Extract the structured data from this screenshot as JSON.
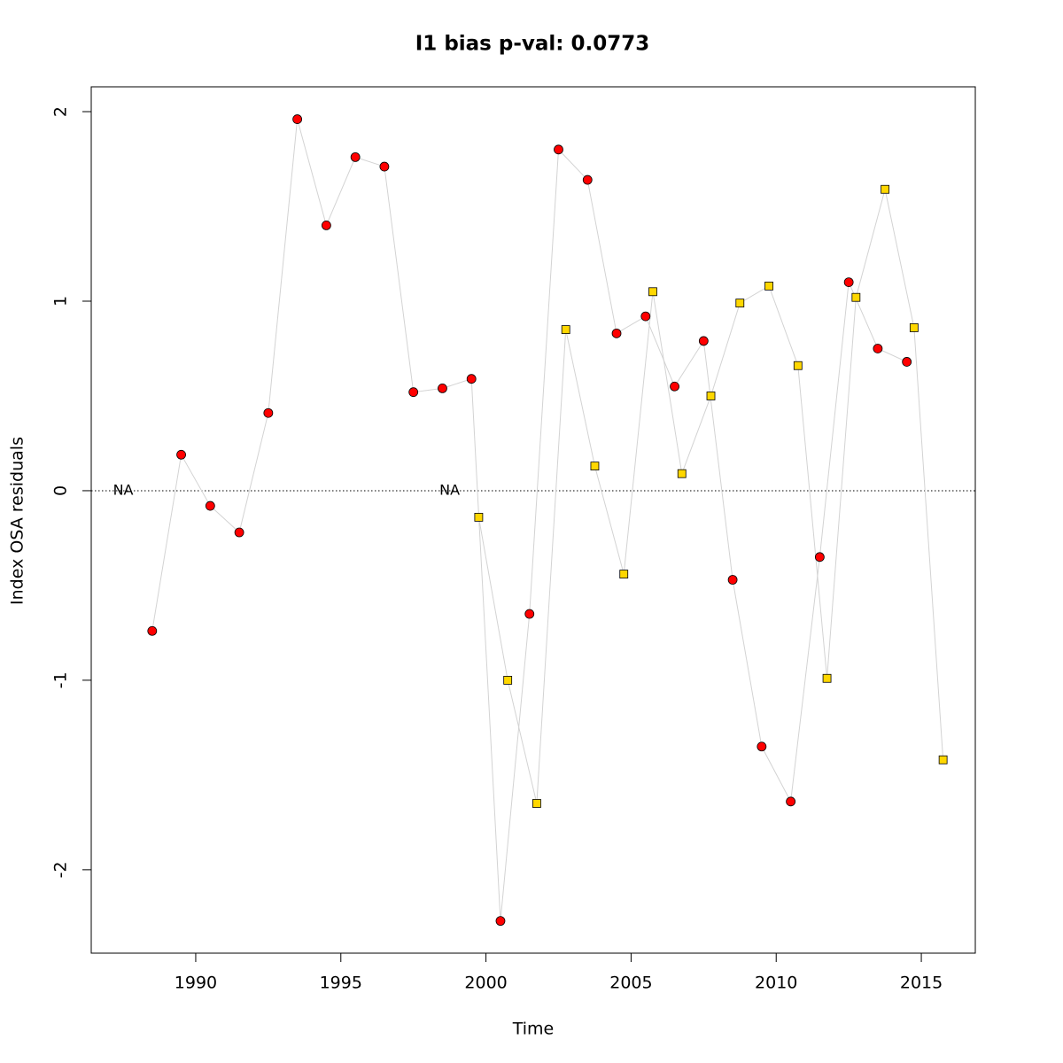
{
  "chart_data": {
    "type": "scatter",
    "title": "I1 bias p-val: 0.0773",
    "title_color": "#228b22",
    "xlabel": "Time",
    "ylabel": "Index OSA residuals",
    "xlim": [
      1986.4,
      2016.86
    ],
    "ylim": [
      -2.44,
      2.131
    ],
    "xticks": [
      1990,
      1995,
      2000,
      2005,
      2010,
      2015
    ],
    "yticks": [
      -2,
      -1,
      0,
      1,
      2
    ],
    "reference_line": 0,
    "na_label": "NA",
    "line_color": "#d3d3d3",
    "series": [
      {
        "marker": "circle",
        "color": "#ff0000",
        "x": [
          1987.5,
          1988.5,
          1989.5,
          1990.5,
          1991.5,
          1992.5,
          1993.5,
          1994.5,
          1995.5,
          1996.5,
          1997.5,
          1998.5,
          1999.5,
          2000.5,
          2001.5,
          2002.5,
          2003.5,
          2004.5,
          2005.5,
          2006.5,
          2007.5,
          2008.5,
          2009.5,
          2010.5,
          2011.5,
          2012.5,
          2013.5,
          2014.5
        ],
        "values": [
          null,
          -0.74,
          0.19,
          -0.08,
          -0.22,
          0.41,
          1.96,
          1.4,
          1.76,
          1.71,
          0.52,
          0.54,
          0.59,
          -2.27,
          -0.65,
          1.8,
          1.64,
          0.83,
          0.92,
          0.55,
          0.79,
          -0.47,
          -1.35,
          -1.64,
          -0.35,
          1.1,
          0.75,
          0.68
        ]
      },
      {
        "marker": "square",
        "color": "#ffd700",
        "x": [
          1998.75,
          1999.75,
          2000.75,
          2001.75,
          2002.75,
          2003.75,
          2004.75,
          2005.75,
          2006.75,
          2007.75,
          2008.75,
          2009.75,
          2010.75,
          2011.75,
          2012.75,
          2013.75,
          2014.75,
          2015.75
        ],
        "values": [
          null,
          -0.14,
          -1.0,
          -1.65,
          0.85,
          0.13,
          -0.44,
          1.05,
          0.09,
          0.5,
          0.99,
          1.08,
          0.66,
          -0.99,
          1.02,
          1.59,
          0.86,
          -1.42
        ]
      }
    ]
  }
}
